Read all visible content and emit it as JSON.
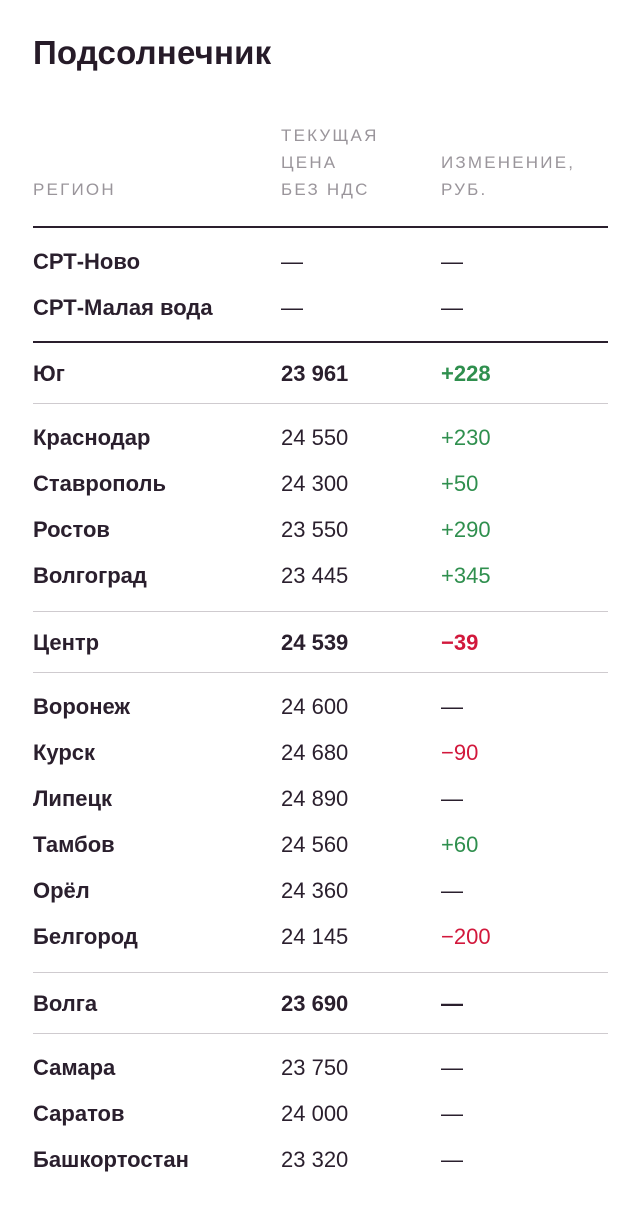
{
  "title": "Подсолнечник",
  "colors": {
    "positive": "#2f8f4e",
    "negative": "#d2183c",
    "text": "#2a1f2d",
    "muted": "#9a959b"
  },
  "columns": {
    "region": "РЕГИОН",
    "price": "ТЕКУЩАЯ\nЦЕНА\nБЕЗ НДС",
    "change": "ИЗМЕНЕНИЕ,\nРУБ."
  },
  "srt": [
    {
      "region": "СРТ-Ново",
      "price": "—",
      "change": "—",
      "trend": "none"
    },
    {
      "region": "СРТ-Малая вода",
      "price": "—",
      "change": "—",
      "trend": "none"
    }
  ],
  "groups": [
    {
      "summary": {
        "region": "Юг",
        "price": "23 961",
        "change": "+228",
        "trend": "pos"
      },
      "rows": [
        {
          "region": "Краснодар",
          "price": "24 550",
          "change": "+230",
          "trend": "pos"
        },
        {
          "region": "Ставрополь",
          "price": "24 300",
          "change": "+50",
          "trend": "pos"
        },
        {
          "region": "Ростов",
          "price": "23 550",
          "change": "+290",
          "trend": "pos"
        },
        {
          "region": "Волгоград",
          "price": "23 445",
          "change": "+345",
          "trend": "pos"
        }
      ]
    },
    {
      "summary": {
        "region": "Центр",
        "price": "24 539",
        "change": "−39",
        "trend": "neg"
      },
      "rows": [
        {
          "region": "Воронеж",
          "price": "24 600",
          "change": "—",
          "trend": "none"
        },
        {
          "region": "Курск",
          "price": "24 680",
          "change": "−90",
          "trend": "neg"
        },
        {
          "region": "Липецк",
          "price": "24 890",
          "change": "—",
          "trend": "none"
        },
        {
          "region": "Тамбов",
          "price": "24 560",
          "change": "+60",
          "trend": "pos"
        },
        {
          "region": "Орёл",
          "price": "24 360",
          "change": "—",
          "trend": "none"
        },
        {
          "region": "Белгород",
          "price": "24 145",
          "change": "−200",
          "trend": "neg"
        }
      ]
    },
    {
      "summary": {
        "region": "Волга",
        "price": "23 690",
        "change": "—",
        "trend": "none"
      },
      "rows": [
        {
          "region": "Самара",
          "price": "23 750",
          "change": "—",
          "trend": "none"
        },
        {
          "region": "Саратов",
          "price": "24 000",
          "change": "—",
          "trend": "none"
        },
        {
          "region": "Башкортостан",
          "price": "23 320",
          "change": "—",
          "trend": "none"
        }
      ]
    }
  ]
}
